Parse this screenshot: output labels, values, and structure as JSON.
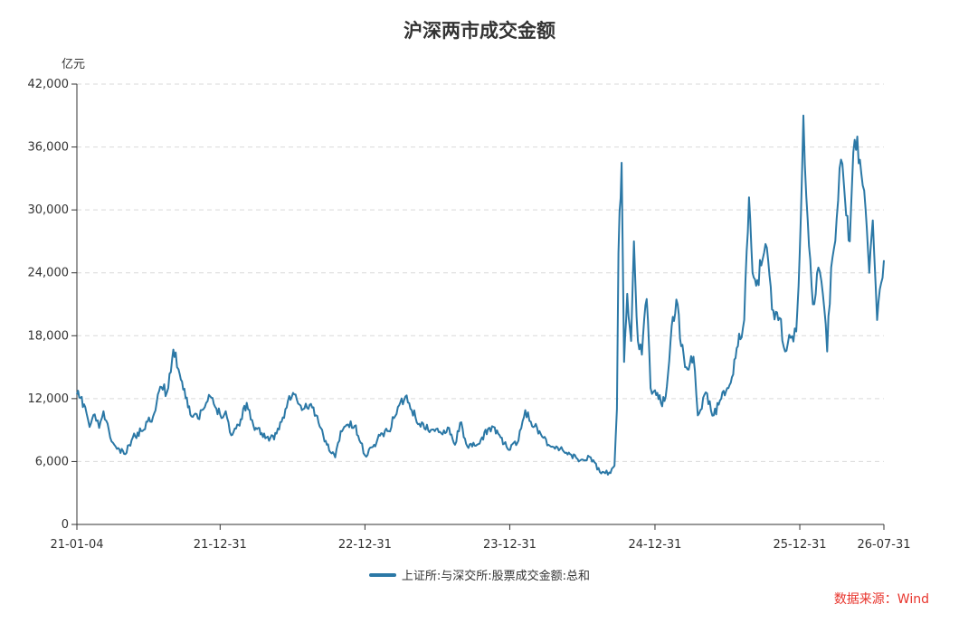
{
  "chart_data": {
    "type": "line",
    "title": "沪深两市成交金额",
    "ylabel": "亿元",
    "ylim": [
      0,
      42000
    ],
    "y_ticks": [
      "0",
      "6,000",
      "12,000",
      "18,000",
      "24,000",
      "30,000",
      "36,000",
      "42,000"
    ],
    "x_ticks": [
      "21-01-04",
      "21-12-31",
      "22-12-31",
      "23-12-31",
      "24-12-31",
      "25-12-31",
      "26-07-31"
    ],
    "grid": true,
    "legend_position": "bottom",
    "series": [
      {
        "name": "上证所:与深交所:股票成交金额:总和",
        "color": "#2b78a6",
        "points": [
          [
            "2021-01-04",
            12400
          ],
          [
            "2021-01-25",
            11200
          ],
          [
            "2021-02-05",
            9300
          ],
          [
            "2021-02-18",
            10500
          ],
          [
            "2021-03-01",
            9200
          ],
          [
            "2021-03-12",
            10800
          ],
          [
            "2021-03-29",
            8300
          ],
          [
            "2021-04-15",
            7200
          ],
          [
            "2021-05-06",
            6700
          ],
          [
            "2021-05-25",
            8300
          ],
          [
            "2021-06-15",
            8900
          ],
          [
            "2021-07-01",
            9800
          ],
          [
            "2021-07-15",
            10300
          ],
          [
            "2021-07-27",
            12400
          ],
          [
            "2021-08-05",
            13100
          ],
          [
            "2021-08-19",
            12600
          ],
          [
            "2021-09-01",
            15800
          ],
          [
            "2021-09-10",
            16400
          ],
          [
            "2021-09-17",
            14800
          ],
          [
            "2021-10-08",
            12100
          ],
          [
            "2021-10-20",
            10300
          ],
          [
            "2021-11-05",
            10100
          ],
          [
            "2021-11-19",
            11000
          ],
          [
            "2021-12-06",
            12200
          ],
          [
            "2021-12-15",
            11500
          ],
          [
            "2021-12-31",
            10500
          ],
          [
            "2022-01-14",
            10800
          ],
          [
            "2022-01-28",
            8500
          ],
          [
            "2022-02-15",
            9500
          ],
          [
            "2022-03-08",
            11600
          ],
          [
            "2022-03-25",
            9400
          ],
          [
            "2022-04-15",
            8700
          ],
          [
            "2022-04-27",
            8300
          ],
          [
            "2022-05-16",
            8100
          ],
          [
            "2022-06-07",
            10200
          ],
          [
            "2022-06-20",
            11800
          ],
          [
            "2022-07-06",
            12400
          ],
          [
            "2022-07-25",
            10900
          ],
          [
            "2022-08-17",
            11500
          ],
          [
            "2022-09-05",
            9700
          ],
          [
            "2022-09-26",
            7600
          ],
          [
            "2022-10-17",
            6400
          ],
          [
            "2022-10-31",
            8900
          ],
          [
            "2022-11-15",
            9500
          ],
          [
            "2022-12-05",
            9400
          ],
          [
            "2022-12-20",
            7800
          ],
          [
            "2022-12-31",
            6600
          ],
          [
            "2023-01-20",
            7400
          ],
          [
            "2023-02-10",
            8700
          ],
          [
            "2023-03-01",
            8900
          ],
          [
            "2023-03-24",
            11200
          ],
          [
            "2023-04-12",
            12200
          ],
          [
            "2023-04-28",
            10900
          ],
          [
            "2023-05-17",
            9600
          ],
          [
            "2023-06-15",
            9000
          ],
          [
            "2023-07-05",
            8800
          ],
          [
            "2023-07-31",
            9200
          ],
          [
            "2023-08-15",
            7600
          ],
          [
            "2023-08-28",
            9700
          ],
          [
            "2023-09-18",
            7300
          ],
          [
            "2023-10-16",
            7700
          ],
          [
            "2023-11-06",
            9100
          ],
          [
            "2023-11-20",
            9300
          ],
          [
            "2023-12-08",
            8300
          ],
          [
            "2023-12-29",
            7100
          ],
          [
            "2024-01-22",
            8000
          ],
          [
            "2024-02-08",
            10900
          ],
          [
            "2024-02-22",
            9800
          ],
          [
            "2024-03-15",
            8900
          ],
          [
            "2024-04-10",
            7500
          ],
          [
            "2024-05-06",
            7200
          ],
          [
            "2024-05-31",
            6700
          ],
          [
            "2024-06-25",
            6100
          ],
          [
            "2024-07-22",
            6400
          ],
          [
            "2024-08-14",
            5000
          ],
          [
            "2024-09-10",
            4900
          ],
          [
            "2024-09-20",
            5600
          ],
          [
            "2024-09-26",
            11000
          ],
          [
            "2024-09-30",
            25900
          ],
          [
            "2024-10-08",
            34500
          ],
          [
            "2024-10-14",
            15500
          ],
          [
            "2024-10-22",
            22000
          ],
          [
            "2024-11-01",
            17500
          ],
          [
            "2024-11-08",
            27000
          ],
          [
            "2024-11-18",
            17500
          ],
          [
            "2024-11-28",
            16200
          ],
          [
            "2024-12-10",
            21500
          ],
          [
            "2024-12-20",
            13000
          ],
          [
            "2024-12-31",
            12800
          ],
          [
            "2025-01-15",
            11600
          ],
          [
            "2025-01-27",
            12200
          ],
          [
            "2025-02-14",
            19800
          ],
          [
            "2025-02-26",
            21000
          ],
          [
            "2025-03-07",
            17000
          ],
          [
            "2025-03-20",
            15000
          ],
          [
            "2025-04-07",
            16000
          ],
          [
            "2025-04-18",
            10400
          ],
          [
            "2025-05-08",
            12600
          ],
          [
            "2025-05-28",
            10400
          ],
          [
            "2025-06-16",
            12000
          ],
          [
            "2025-07-07",
            13300
          ],
          [
            "2025-07-28",
            17000
          ],
          [
            "2025-08-13",
            19500
          ],
          [
            "2025-08-25",
            31200
          ],
          [
            "2025-09-03",
            24000
          ],
          [
            "2025-09-15",
            23300
          ],
          [
            "2025-09-25",
            24700
          ],
          [
            "2025-10-09",
            26400
          ],
          [
            "2025-10-22",
            20500
          ],
          [
            "2025-11-10",
            19700
          ],
          [
            "2025-11-24",
            16500
          ],
          [
            "2025-12-08",
            17800
          ],
          [
            "2025-12-22",
            18400
          ],
          [
            "2025-12-31",
            26000
          ],
          [
            "2026-01-09",
            39000
          ],
          [
            "2026-01-20",
            29000
          ],
          [
            "2026-02-02",
            21000
          ],
          [
            "2026-02-16",
            24500
          ],
          [
            "2026-02-27",
            22000
          ],
          [
            "2026-03-10",
            16500
          ],
          [
            "2026-03-20",
            24500
          ],
          [
            "2026-04-03",
            29200
          ],
          [
            "2026-04-14",
            34800
          ],
          [
            "2026-04-24",
            31000
          ],
          [
            "2026-05-06",
            27000
          ],
          [
            "2026-05-15",
            35500
          ],
          [
            "2026-05-25",
            37000
          ],
          [
            "2026-06-04",
            33500
          ],
          [
            "2026-06-15",
            30000
          ],
          [
            "2026-06-24",
            24000
          ],
          [
            "2026-07-03",
            29000
          ],
          [
            "2026-07-14",
            19500
          ],
          [
            "2026-07-24",
            23000
          ],
          [
            "2026-07-31",
            25200
          ]
        ]
      }
    ]
  },
  "source": {
    "text": "数据来源：Wind",
    "color": "#e8342c"
  }
}
